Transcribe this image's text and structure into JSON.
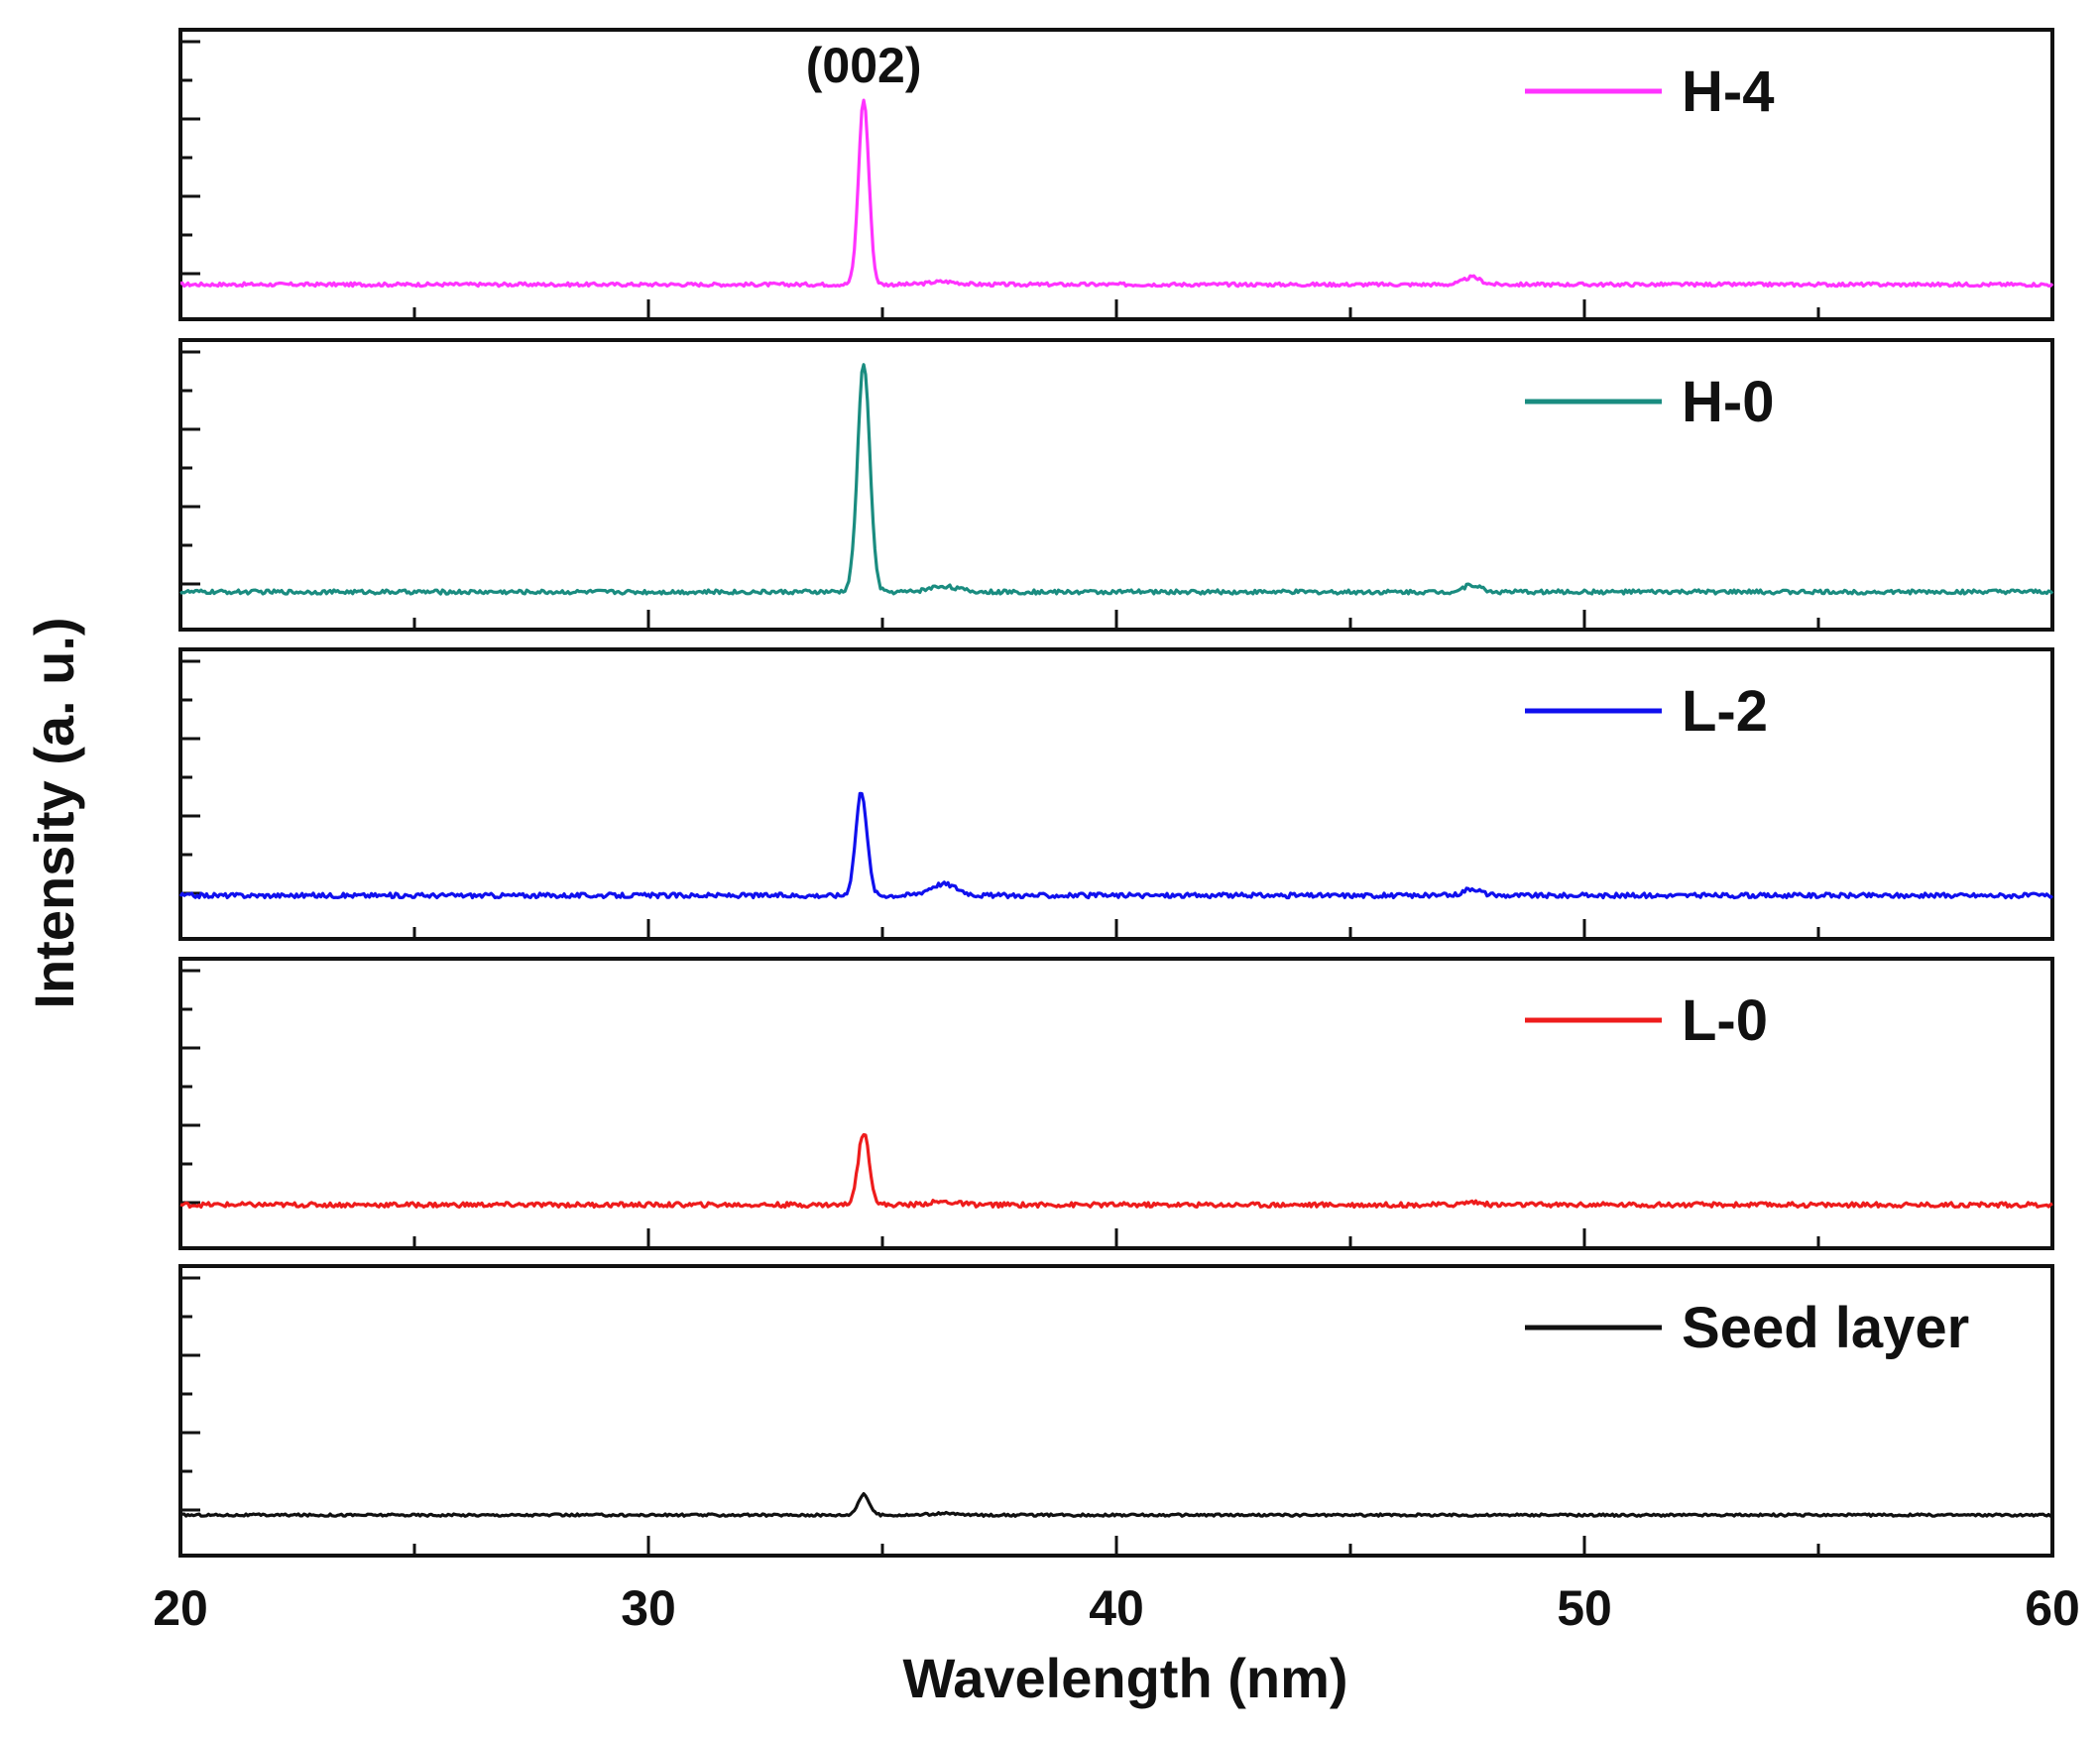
{
  "chart_data": {
    "type": "line",
    "title": "",
    "xlabel": "Wavelength (nm)",
    "ylabel": "Intensity (a. u.)",
    "xlim": [
      20,
      60
    ],
    "xticks": [
      20,
      30,
      40,
      50,
      60
    ],
    "ylim": [
      0,
      1
    ],
    "grid": false,
    "annotation": {
      "text": "(002)",
      "x": 34.6
    },
    "series": [
      {
        "name": "H-4",
        "color": "#ff33ff",
        "baseline": 0.12,
        "noise": 0.006,
        "peaks": [
          {
            "x": 34.6,
            "height": 0.64,
            "width": 0.11
          },
          {
            "x": 36.3,
            "height": 0.01,
            "width": 0.3
          },
          {
            "x": 47.6,
            "height": 0.025,
            "width": 0.18
          }
        ]
      },
      {
        "name": "H-0",
        "color": "#1a8c80",
        "baseline": 0.13,
        "noise": 0.007,
        "peaks": [
          {
            "x": 34.6,
            "height": 0.79,
            "width": 0.13
          },
          {
            "x": 36.3,
            "height": 0.02,
            "width": 0.3
          },
          {
            "x": 47.6,
            "height": 0.025,
            "width": 0.18
          }
        ]
      },
      {
        "name": "L-2",
        "color": "#1010ee",
        "baseline": 0.15,
        "noise": 0.008,
        "peaks": [
          {
            "x": 34.55,
            "height": 0.36,
            "width": 0.12
          },
          {
            "x": 36.3,
            "height": 0.04,
            "width": 0.3
          },
          {
            "x": 47.6,
            "height": 0.025,
            "width": 0.18
          }
        ]
      },
      {
        "name": "L-0",
        "color": "#ee1c1c",
        "baseline": 0.15,
        "noise": 0.008,
        "peaks": [
          {
            "x": 34.6,
            "height": 0.25,
            "width": 0.12
          },
          {
            "x": 36.3,
            "height": 0.01,
            "width": 0.3
          },
          {
            "x": 47.6,
            "height": 0.01,
            "width": 0.18
          }
        ]
      },
      {
        "name": "Seed layer",
        "color": "#111111",
        "baseline": 0.14,
        "noise": 0.004,
        "peaks": [
          {
            "x": 34.6,
            "height": 0.07,
            "width": 0.12
          },
          {
            "x": 36.3,
            "height": 0.005,
            "width": 0.3
          }
        ]
      }
    ]
  }
}
